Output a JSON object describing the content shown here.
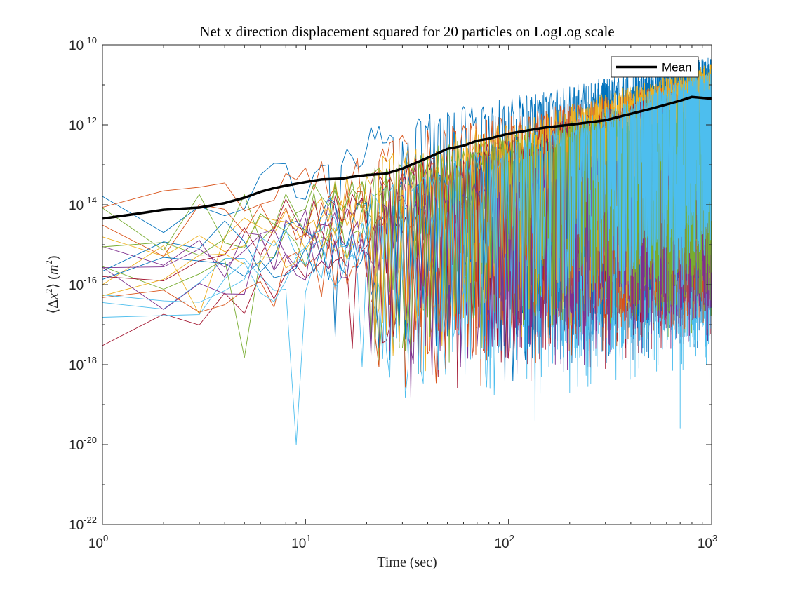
{
  "chart_data": {
    "type": "line",
    "title": "Net x direction displacement squared for 20 particles on LogLog scale",
    "xlabel": "Time (sec)",
    "ylabel_parts": [
      "⟨Δ",
      "x",
      "2",
      "⟩ (",
      "m",
      "2",
      ")"
    ],
    "xscale": "log",
    "yscale": "log",
    "xlim": [
      1,
      1000
    ],
    "ylim": [
      1e-22,
      1e-10
    ],
    "x_ticks": [
      {
        "base": "10",
        "exp": "0"
      },
      {
        "base": "10",
        "exp": "1"
      },
      {
        "base": "10",
        "exp": "2"
      },
      {
        "base": "10",
        "exp": "3"
      }
    ],
    "y_ticks": [
      {
        "base": "10",
        "exp": "-22"
      },
      {
        "base": "10",
        "exp": "-20"
      },
      {
        "base": "10",
        "exp": "-18"
      },
      {
        "base": "10",
        "exp": "-16"
      },
      {
        "base": "10",
        "exp": "-14"
      },
      {
        "base": "10",
        "exp": "-12"
      },
      {
        "base": "10",
        "exp": "-10"
      }
    ],
    "grid": false,
    "legend": {
      "position": "top-right",
      "entries": [
        "Mean"
      ]
    },
    "mean": {
      "name": "Mean",
      "color": "#000000",
      "x": [
        1,
        1.5,
        2,
        3,
        4,
        5,
        6,
        7,
        8,
        10,
        12,
        15,
        17,
        20,
        25,
        30,
        40,
        50,
        60,
        70,
        80,
        100,
        150,
        200,
        300,
        500,
        700,
        800,
        1000
      ],
      "y": [
        4.5e-15,
        6e-15,
        7.5e-15,
        8.5e-15,
        1.1e-14,
        1.5e-14,
        2.1e-14,
        2.6e-14,
        3e-14,
        3.7e-14,
        4.3e-14,
        4.5e-14,
        5e-14,
        5.5e-14,
        6e-14,
        8e-14,
        1.5e-13,
        2.5e-13,
        3e-13,
        4e-13,
        4.5e-13,
        6e-13,
        8.5e-13,
        1e-12,
        1.3e-12,
        2.5e-12,
        4e-12,
        5e-12,
        4.5e-12
      ]
    },
    "particles": {
      "count": 20,
      "colors": [
        "#0072BD",
        "#D95319",
        "#EDB120",
        "#7E2F8E",
        "#77AC30",
        "#4DBEEE",
        "#A2142F"
      ],
      "t0_values": [
        5e-14,
        2e-14,
        3e-15,
        1e-15,
        5e-16,
        1.5e-16,
        1e-16,
        7e-16,
        8e-17,
        4e-15,
        9e-16,
        1.2e-14,
        3e-16,
        2e-15,
        1.5e-15,
        7e-15,
        2.5e-16,
        6e-16,
        1.1e-14,
        2e-16
      ],
      "t1000_values": [
        3e-11,
        1e-11,
        2e-11,
        5e-12,
        8e-12,
        1e-12,
        5e-13,
        3e-13,
        1.5e-12,
        4e-12,
        2e-12,
        6e-13,
        1e-13,
        7e-12,
        2.5e-12,
        9e-13,
        1.2e-11,
        4e-13,
        3e-12,
        1.5e-11
      ],
      "deep_dips": [
        {
          "x": 9,
          "y": 1e-20,
          "series": 5
        },
        {
          "x": 5,
          "y": 1.5e-18,
          "series": 4
        },
        {
          "x": 3,
          "y": 1.8e-17,
          "series": 2
        },
        {
          "x": 19,
          "y": 9e-19,
          "series": 5
        },
        {
          "x": 17,
          "y": 2.5e-18,
          "series": 6
        },
        {
          "x": 39,
          "y": 7e-19,
          "series": 2
        },
        {
          "x": 135,
          "y": 4e-20,
          "series": 5
        },
        {
          "x": 200,
          "y": 2e-19,
          "series": 5
        },
        {
          "x": 700,
          "y": 2.5e-20,
          "series": 5
        },
        {
          "x": 980,
          "y": 1.5e-20,
          "series": 3
        },
        {
          "x": 14,
          "y": 5e-18,
          "series": 0
        },
        {
          "x": 95,
          "y": 3e-18,
          "series": 3
        },
        {
          "x": 300,
          "y": 8e-19,
          "series": 6
        }
      ]
    }
  }
}
